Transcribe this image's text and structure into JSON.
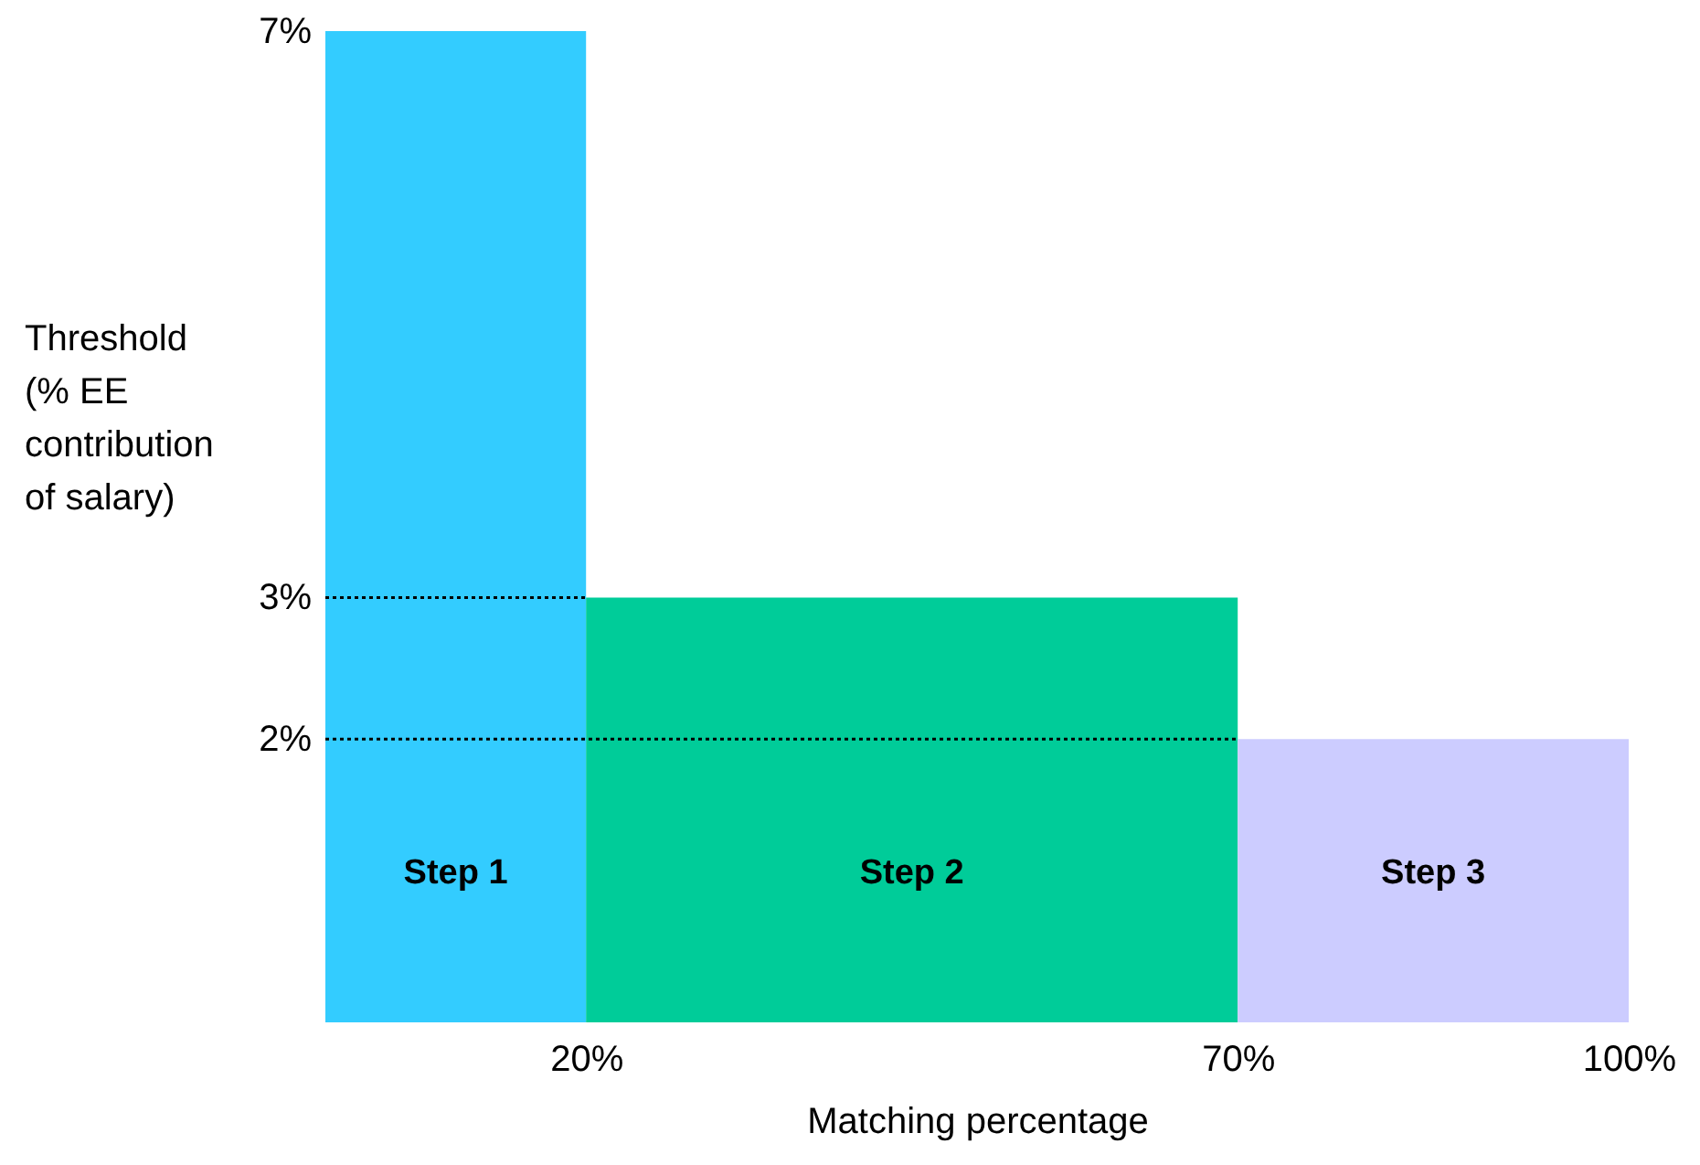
{
  "chart_data": {
    "type": "histogram",
    "xlabel": "Matching percentage",
    "ylabel": "Threshold (% EE contribution of salary)",
    "bins": [
      0,
      20,
      70,
      100
    ],
    "values": [
      7,
      3,
      2
    ],
    "colors": [
      "#33ccff",
      "#00cc99",
      "#ccccff"
    ],
    "value_labels": [
      "Step 1",
      "Step 2",
      "Step 3"
    ],
    "xlim": [
      0,
      100
    ],
    "xticks": [
      {
        "value": 20,
        "label": "20%"
      },
      {
        "value": 70,
        "label": "70%"
      },
      {
        "value": 100,
        "label": "100%"
      }
    ],
    "ylim": [
      0,
      7
    ],
    "yticks": [
      {
        "value": 2,
        "label": "2%"
      },
      {
        "value": 3,
        "label": "3%"
      },
      {
        "value": 7,
        "label": "7%"
      }
    ],
    "ref_lines": [
      {
        "axis": "y",
        "value": 3,
        "line_style": "dotted",
        "color": "#000000"
      },
      {
        "axis": "y",
        "value": 2,
        "line_style": "dotted",
        "color": "#000000"
      }
    ]
  }
}
